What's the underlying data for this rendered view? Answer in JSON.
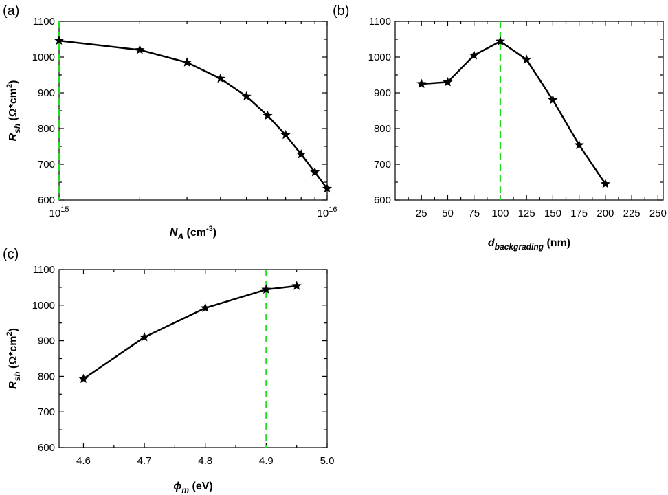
{
  "colors": {
    "line": "#000000",
    "marker": "#000000",
    "reference": "#22dd22"
  },
  "chart_data": [
    {
      "panel": "(a)",
      "type": "line",
      "xscale": "log",
      "xlim": [
        1000000000000000.0,
        1e+16
      ],
      "ylim": [
        600,
        1100
      ],
      "xlabel": {
        "base": "N",
        "sub": "A",
        "unit": " (cm",
        "sup": "-3",
        "end": ")"
      },
      "ylabel": {
        "base": "R",
        "sub": "sh",
        "unit": " (Ω*cm",
        "sup": "2",
        "end": ")"
      },
      "xticks": [
        {
          "value": 1000000000000000.0,
          "base": "10",
          "exp": "15"
        },
        {
          "value": 1e+16,
          "base": "10",
          "exp": "16"
        }
      ],
      "yticks": [
        600,
        700,
        800,
        900,
        1000,
        1100
      ],
      "reference_x": 1000000000000000.0,
      "x": [
        1000000000000000.0,
        2000000000000000.0,
        3000000000000000.0,
        4000000000000000.0,
        5000000000000000.0,
        6000000000000000.0,
        7000000000000000.0,
        8000000000000000.0,
        9000000000000000.0,
        1e+16
      ],
      "y": [
        1046,
        1020,
        985,
        940,
        890,
        836,
        782,
        728,
        678,
        632
      ]
    },
    {
      "panel": "(b)",
      "type": "line",
      "xscale": "linear",
      "xlim": [
        0,
        255
      ],
      "ylim": [
        600,
        1100
      ],
      "xlabel": {
        "base": "d",
        "sub": "backgrading",
        "unit": " (nm)"
      },
      "ylabel": null,
      "xticks": [
        25,
        50,
        75,
        100,
        125,
        150,
        175,
        200,
        225,
        250
      ],
      "yticks": [
        600,
        700,
        800,
        900,
        1000,
        1100
      ],
      "reference_x": 100,
      "x": [
        25,
        50,
        75,
        100,
        125,
        150,
        175,
        200
      ],
      "y": [
        925,
        930,
        1005,
        1044,
        993,
        880,
        754,
        645
      ]
    },
    {
      "panel": "(c)",
      "type": "line",
      "xscale": "linear",
      "xlim": [
        4.56,
        5.0
      ],
      "ylim": [
        600,
        1100
      ],
      "xlabel": {
        "base": "ϕ",
        "sub": "m",
        "unit": " (eV)"
      },
      "ylabel": {
        "base": "R",
        "sub": "sh",
        "unit": " (Ω*cm",
        "sup": "2",
        "end": ")"
      },
      "xticks": [
        4.6,
        4.7,
        4.8,
        4.9,
        5.0
      ],
      "xtick_labels": [
        "4.6",
        "4.7",
        "4.8",
        "4.9",
        "5.0"
      ],
      "yticks": [
        600,
        700,
        800,
        900,
        1000,
        1100
      ],
      "reference_x": 4.9,
      "x": [
        4.6,
        4.7,
        4.8,
        4.9,
        4.95
      ],
      "y": [
        793,
        910,
        992,
        1044,
        1054
      ]
    }
  ]
}
